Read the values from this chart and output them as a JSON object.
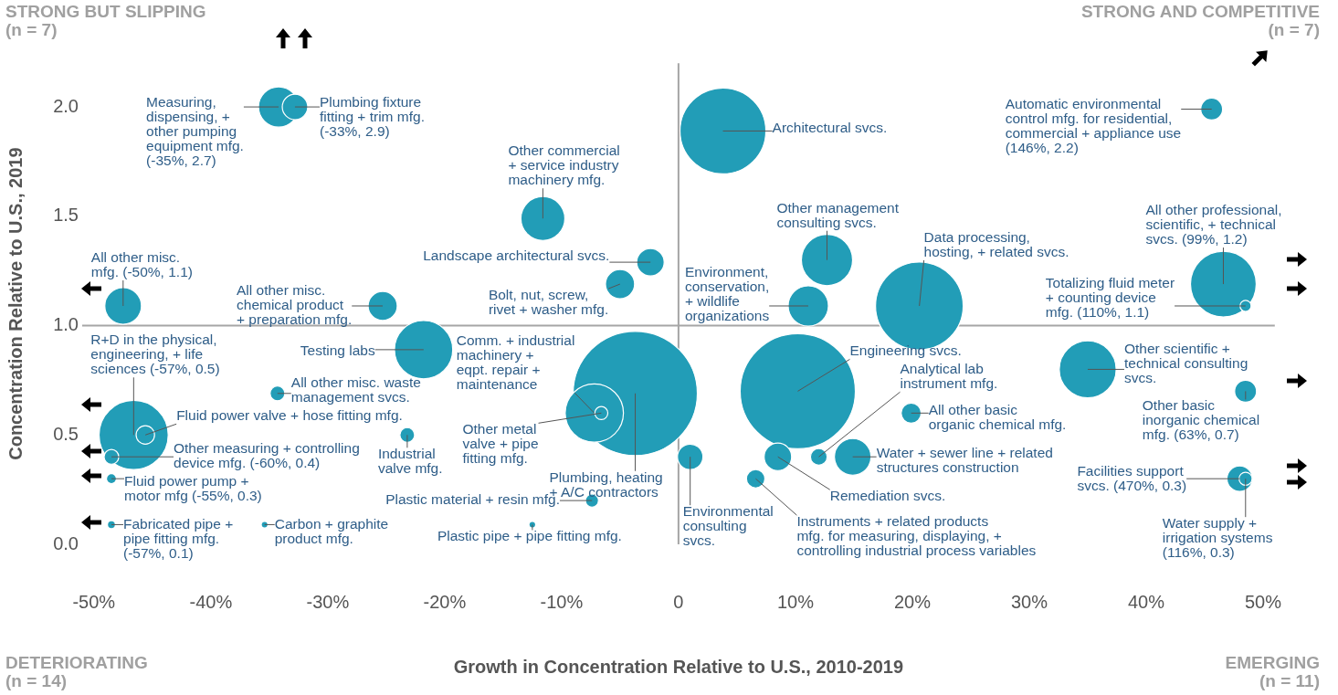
{
  "chart_data": {
    "type": "bubble",
    "xlabel": "Growth in Concentration Relative to U.S., 2010-2019",
    "ylabel": "Concentration Relative to U.S., 2019",
    "xlim": [
      -51,
      51
    ],
    "ylim": [
      0,
      2.2
    ],
    "xticks": [
      {
        "value": -50,
        "label": "-50%"
      },
      {
        "value": -40,
        "label": "-40%"
      },
      {
        "value": -30,
        "label": "-30%"
      },
      {
        "value": -20,
        "label": "-20%"
      },
      {
        "value": -10,
        "label": "-10%"
      },
      0,
      {
        "value": 10,
        "label": "10%"
      },
      {
        "value": 20,
        "label": "20%"
      },
      {
        "value": 30,
        "label": "30%"
      },
      {
        "value": 40,
        "label": "40%"
      },
      {
        "value": 50,
        "label": "50%"
      }
    ],
    "yticks": [
      {
        "value": 0,
        "label": "0.0"
      },
      {
        "value": 0.5,
        "label": "0.5"
      },
      {
        "value": 1,
        "label": "1.0"
      },
      {
        "value": 1.5,
        "label": "1.5"
      },
      {
        "value": 2,
        "label": "2.0"
      }
    ],
    "grid": false,
    "legend": false,
    "series": [
      {
        "color": "#229db7",
        "x": [
          -34.2,
          -32.8,
          3.8,
          45.6,
          -11.6,
          -2.4,
          -5.0,
          -47.5,
          -25.3,
          12.7,
          11.1,
          20.6,
          46.6,
          48.5,
          -21.8,
          -3.7,
          10.2,
          35.0,
          -46.6,
          -45.6,
          -48.5,
          -34.3,
          -23.2,
          -7.2,
          -6.6,
          1.0,
          -7.4,
          -12.5,
          -48.5,
          -48.5,
          -35.4,
          12.0,
          6.6,
          8.5,
          14.9,
          19.9,
          48.5,
          48.0,
          48.5
        ],
        "values": [
          2.0,
          2.0,
          1.89,
          1.99,
          1.49,
          1.29,
          1.19,
          1.09,
          1.09,
          1.3,
          1.09,
          1.09,
          1.19,
          1.09,
          0.89,
          0.69,
          0.7,
          0.8,
          0.5,
          0.5,
          0.4,
          0.69,
          0.5,
          0.6,
          0.6,
          0.4,
          0.2,
          0.09,
          0.3,
          0.09,
          0.09,
          0.4,
          0.3,
          0.4,
          0.4,
          0.6,
          0.7,
          0.3,
          0.3
        ],
        "sizes": [
          0.105,
          0.042,
          0.478,
          0.031,
          0.125,
          0.049,
          0.055,
          0.087,
          0.055,
          0.17,
          0.105,
          0.498,
          0.28,
          0.008,
          0.22,
          1,
          0.86,
          0.21,
          0.31,
          0.022,
          0.014,
          0.014,
          0.014,
          0.22,
          0.011,
          0.042,
          0.011,
          0.002,
          0.005,
          0.003,
          0.002,
          0.018,
          0.022,
          0.049,
          0.087,
          0.026,
          0.031,
          0.042,
          0.011
        ]
      }
    ],
    "ref_lines": [
      {
        "axis": "x",
        "value": 0,
        "color": "#a6a6a6"
      },
      {
        "axis": "y",
        "value": 1,
        "color": "#a6a6a6"
      }
    ],
    "annotations": [
      "STRONG BUT SLIPPING\n(n = 7)",
      "STRONG AND COMPETITIVE\n(n = 7)",
      "DETERIORATING\n(n = 14)",
      "EMERGING\n(n = 11)",
      {
        "text": "Measuring,\ndispensing, +\nother pumping\nequipment mfg.\n(-35%, 2.7)",
        "x": -34.2,
        "y": 2.0
      },
      {
        "text": "Plumbing fixture\nfitting + trim mfg.\n(-33%, 2.9)",
        "x": -32.8,
        "y": 2.0
      },
      {
        "text": "Other commercial\n+ service industry\nmachinery mfg.",
        "x": -11.6,
        "y": 1.49
      },
      {
        "text": "Landscape architectural svcs.",
        "x": -2.4,
        "y": 1.29
      },
      {
        "text": "Bolt, nut, screw,\nrivet + washer mfg.",
        "x": -5.0,
        "y": 1.19
      },
      {
        "text": "All other misc.\nmfg. (-50%, 1.1)",
        "x": -47.5,
        "y": 1.09
      },
      {
        "text": "All other misc.\nchemical product\n+ preparation mfg.",
        "x": -25.3,
        "y": 1.09
      },
      {
        "text": "Architectural svcs.",
        "x": 3.8,
        "y": 1.89
      },
      {
        "text": "Automatic environmental\ncontrol mfg. for residential,\ncommercial + appliance use\n(146%, 2.2)",
        "x": 45.6,
        "y": 1.99
      },
      {
        "text": "Other management\nconsulting svcs.",
        "x": 12.7,
        "y": 1.3
      },
      {
        "text": "Environment,\nconservation,\n+ wildlife\norganizations",
        "x": 11.1,
        "y": 1.09
      },
      {
        "text": "Data processing,\nhosting, + related svcs.",
        "x": 20.6,
        "y": 1.09
      },
      {
        "text": "All other professional,\nscientific, + technical\nsvcs. (99%, 1.2)",
        "x": 46.6,
        "y": 1.19
      },
      {
        "text": "Totalizing fluid meter\n+ counting device\nmfg. (110%, 1.1)",
        "x": 48.5,
        "y": 1.09
      },
      {
        "text": "R+D in the physical,\nengineering, + life\nsciences (-57%, 0.5)",
        "x": -46.6,
        "y": 0.5
      },
      {
        "text": "Testing labs",
        "x": -21.8,
        "y": 0.89
      },
      {
        "text": "Comm. + industrial\nmachinery +\neqpt. repair +\nmaintenance",
        "x": -7.2,
        "y": 0.6
      },
      {
        "text": "All other misc. waste\nmanagement svcs.",
        "x": -34.3,
        "y": 0.69
      },
      {
        "text": "Fluid power valve + hose fitting mfg.",
        "x": -45.6,
        "y": 0.5
      },
      {
        "text": "Other measuring + controlling\ndevice mfg. (-60%, 0.4)",
        "x": -48.5,
        "y": 0.4
      },
      {
        "text": "Industrial\nvalve mfg.",
        "x": -23.2,
        "y": 0.5
      },
      {
        "text": "Other metal\nvalve + pipe\nfitting mfg.",
        "x": -6.6,
        "y": 0.6
      },
      {
        "text": "Plumbing, heating\n+ A/C contractors",
        "x": -3.7,
        "y": 0.69
      },
      {
        "text": "Fluid power pump +\nmotor mfg (-55%, 0.3)",
        "x": -48.5,
        "y": 0.3
      },
      {
        "text": "Plastic material + resin mfg.",
        "x": -7.4,
        "y": 0.2
      },
      {
        "text": "Fabricated pipe +\npipe fitting mfg.\n(-57%, 0.1)",
        "x": -48.5,
        "y": 0.09
      },
      {
        "text": "Carbon + graphite\nproduct mfg.",
        "x": -35.4,
        "y": 0.09
      },
      {
        "text": "Plastic pipe + pipe fitting mfg.",
        "x": -12.5,
        "y": 0.09
      },
      {
        "text": "Engineering svcs.",
        "x": 10.2,
        "y": 0.7
      },
      {
        "text": "Analytical lab\ninstrument mfg.",
        "x": 12.0,
        "y": 0.4
      },
      {
        "text": "All other basic\norganic chemical mfg.",
        "x": 19.9,
        "y": 0.6
      },
      {
        "text": "Other scientific +\ntechnical consulting\nsvcs.",
        "x": 35.0,
        "y": 0.8
      },
      {
        "text": "Other basic\ninorganic chemical\nmfg. (63%, 0.7)",
        "x": 48.5,
        "y": 0.7
      },
      {
        "text": "Water + sewer line + related\nstructures construction",
        "x": 14.9,
        "y": 0.4
      },
      {
        "text": "Remediation svcs.",
        "x": 8.5,
        "y": 0.4
      },
      {
        "text": "Environmental\nconsulting\nsvcs.",
        "x": 1.0,
        "y": 0.4
      },
      {
        "text": "Instruments + related products\nmfg. for measuring, displaying, +\ncontrolling industrial process variables",
        "x": 6.6,
        "y": 0.3
      },
      {
        "text": "Facilities support\nsvcs. (470%, 0.3)",
        "x": 48.0,
        "y": 0.3
      },
      {
        "text": "Water supply +\nirrigation systems\n(116%, 0.3)",
        "x": 48.5,
        "y": 0.3
      }
    ]
  }
}
